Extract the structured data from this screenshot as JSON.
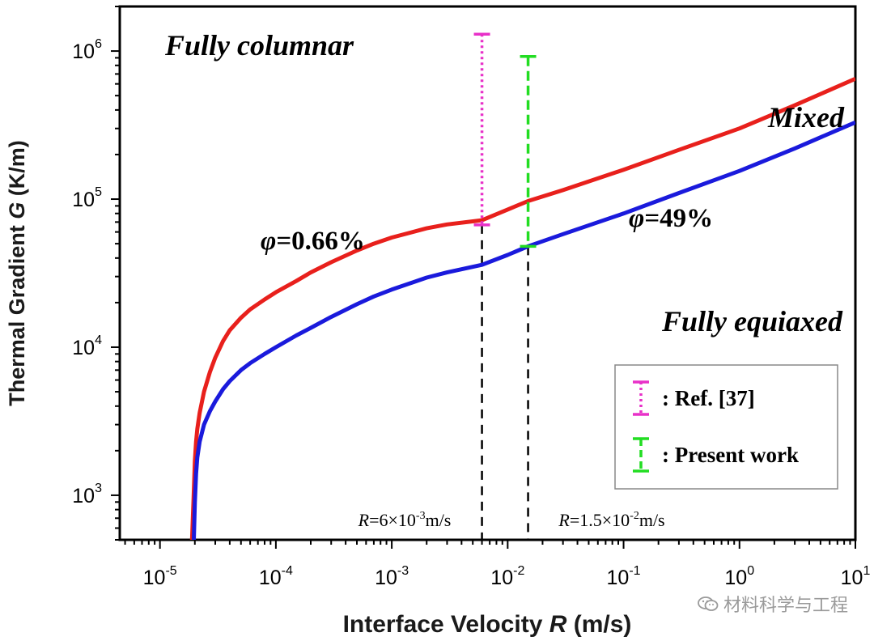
{
  "chart_data": {
    "type": "line",
    "xlabel": "Interface Velocity R (m/s)",
    "xlabel_main": "Interface Velocity ",
    "xlabel_var": "R",
    "xlabel_unit": " (m/s)",
    "ylabel_main": "Thermal Gradient ",
    "ylabel_var": "G",
    "ylabel_unit": " (K/m)",
    "x_scale": "log",
    "y_scale": "log",
    "xlim": [
      4.5e-06,
      10
    ],
    "ylim": [
      500,
      2000000
    ],
    "x_ticks": [
      {
        "value": 1e-05,
        "base": "10",
        "exp": "-5"
      },
      {
        "value": 0.0001,
        "base": "10",
        "exp": "-4"
      },
      {
        "value": 0.001,
        "base": "10",
        "exp": "-3"
      },
      {
        "value": 0.01,
        "base": "10",
        "exp": "-2"
      },
      {
        "value": 0.1,
        "base": "10",
        "exp": "-1"
      },
      {
        "value": 1,
        "base": "10",
        "exp": "0"
      },
      {
        "value": 10,
        "base": "10",
        "exp": "1"
      }
    ],
    "y_ticks": [
      {
        "value": 1000,
        "base": "10",
        "exp": "3"
      },
      {
        "value": 10000,
        "base": "10",
        "exp": "4"
      },
      {
        "value": 100000,
        "base": "10",
        "exp": "5"
      },
      {
        "value": 1000000,
        "base": "10",
        "exp": "6"
      }
    ],
    "series": [
      {
        "color": "#e8201c",
        "x": [
          1.89e-05,
          1.95e-05,
          2e-05,
          2.05e-05,
          2.1e-05,
          2.2e-05,
          2.4e-05,
          2.7e-05,
          3e-05,
          3.5e-05,
          4e-05,
          5e-05,
          6e-05,
          8e-05,
          0.0001,
          0.00015,
          0.0002,
          0.0003,
          0.0005,
          0.0007,
          0.001,
          0.002,
          0.003,
          0.006,
          0.01,
          0.015,
          0.03,
          0.1,
          0.3,
          1,
          3,
          10
        ],
        "y": [
          500,
          950,
          1700,
          2300,
          2800,
          3600,
          5000,
          6800,
          8500,
          11000,
          13000,
          15800,
          18000,
          21000,
          23500,
          28000,
          32000,
          37500,
          45000,
          50000,
          55000,
          63500,
          67500,
          72000,
          85000,
          97000,
          115000,
          158000,
          215000,
          300000,
          430000,
          650000
        ]
      },
      {
        "color": "#1a1adc",
        "x": [
          1.96e-05,
          2e-05,
          2.05e-05,
          2.1e-05,
          2.2e-05,
          2.4e-05,
          2.7e-05,
          3e-05,
          3.5e-05,
          4e-05,
          5e-05,
          6e-05,
          8e-05,
          0.0001,
          0.00015,
          0.0002,
          0.0003,
          0.0005,
          0.0007,
          0.001,
          0.002,
          0.003,
          0.006,
          0.01,
          0.015,
          0.03,
          0.1,
          0.3,
          1,
          3,
          10
        ],
        "y": [
          500,
          900,
          1400,
          1800,
          2300,
          3000,
          3700,
          4300,
          5200,
          5900,
          7000,
          7800,
          9000,
          10000,
          12000,
          13500,
          16000,
          19500,
          22000,
          24500,
          29500,
          32000,
          36000,
          42000,
          48000,
          58000,
          80000,
          110000,
          155000,
          220000,
          330000
        ]
      }
    ],
    "error_bars": [
      {
        "x": 0.006,
        "y_low": 67000,
        "y_high": 1300000,
        "color": "#e830c8",
        "style": "dotted"
      },
      {
        "x": 0.015,
        "y_low": 48000,
        "y_high": 920000,
        "color": "#22dd22",
        "style": "dashed"
      }
    ],
    "vlines": [
      {
        "x": 0.006,
        "y_top": 67000,
        "label_var": "R",
        "label_text": "=6×10",
        "label_exp": "-3",
        "label_unit": "m/s"
      },
      {
        "x": 0.015,
        "y_top": 48000,
        "label_var": "R",
        "label_text": "=1.5×10",
        "label_exp": "-2",
        "label_unit": "m/s"
      }
    ],
    "annotations": {
      "fully_columnar": "Fully columnar",
      "mixed": "Mixed",
      "fully_equiaxed": "Fully equiaxed",
      "phi_red_symbol": "φ",
      "phi_red_value": "=0.66%",
      "phi_blue_symbol": "φ",
      "phi_blue_value": "=49%"
    },
    "legend": {
      "position": "bottom-right",
      "entries": [
        {
          "label": ": Ref. [37]",
          "color": "#e830c8",
          "style": "dotted"
        },
        {
          "label": ": Present work",
          "color": "#22dd22",
          "style": "dashed"
        }
      ]
    }
  },
  "watermark": {
    "text": "材料科学与工程",
    "icon": "wechat-icon"
  }
}
